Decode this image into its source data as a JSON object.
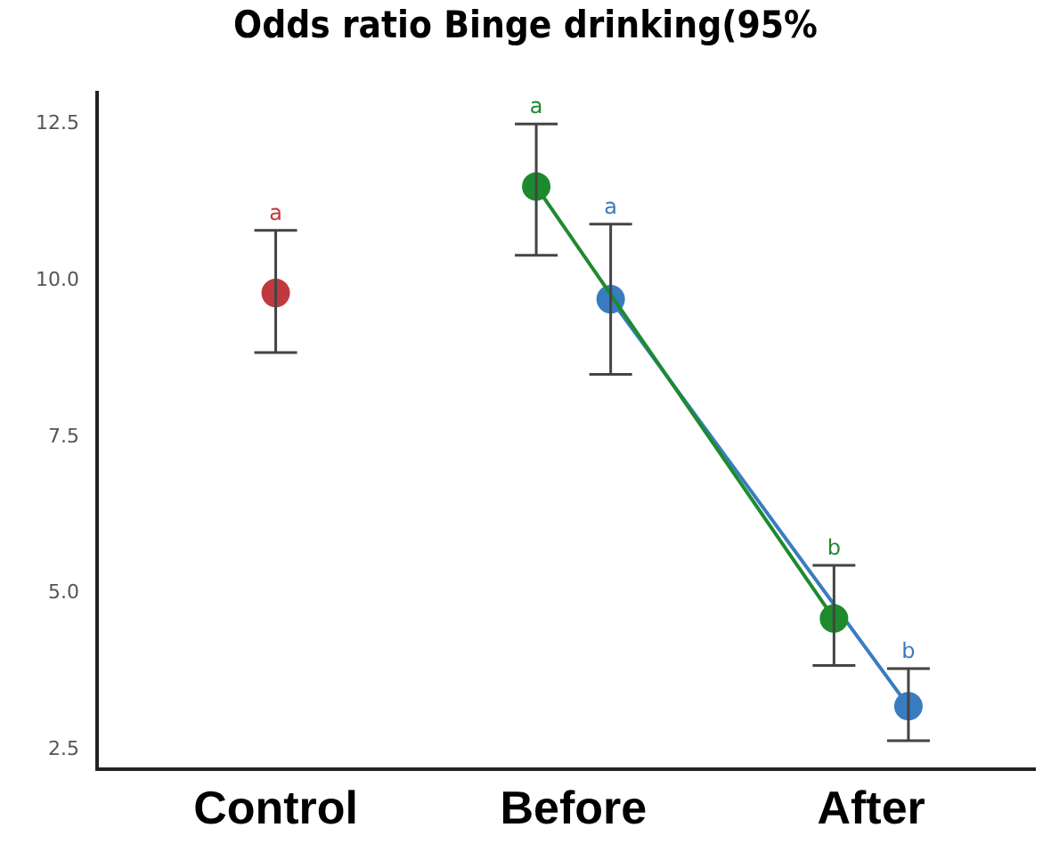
{
  "chart_data": {
    "type": "line",
    "title": "Odds ratio Binge drinking(95%",
    "categories": [
      "Control",
      "Before",
      "After"
    ],
    "series": [
      {
        "color": "#c0393f",
        "values": [
          9.8,
          null,
          null
        ],
        "errors": [
          [
            8.85,
            10.8
          ],
          null,
          null
        ]
      },
      {
        "color": "#1e8a2e",
        "values": [
          null,
          11.5,
          4.6
        ],
        "errors": [
          null,
          [
            10.4,
            12.5
          ],
          [
            3.85,
            5.45
          ]
        ]
      },
      {
        "color": "#3a7cc0",
        "values": [
          null,
          9.7,
          3.2
        ],
        "errors": [
          null,
          [
            8.5,
            10.9
          ],
          [
            2.65,
            3.8
          ]
        ]
      }
    ],
    "ylim": [
      2.2,
      13
    ],
    "yticks": [
      2.5,
      {
        "value": 5,
        "label": "5.0"
      },
      7.5,
      {
        "value": 10,
        "label": "10.0"
      },
      12.5
    ],
    "grid": false,
    "legend": false,
    "marker": "circle",
    "line_style": "solid",
    "annotations": [
      "a",
      "a",
      "a",
      "b",
      "b"
    ]
  }
}
